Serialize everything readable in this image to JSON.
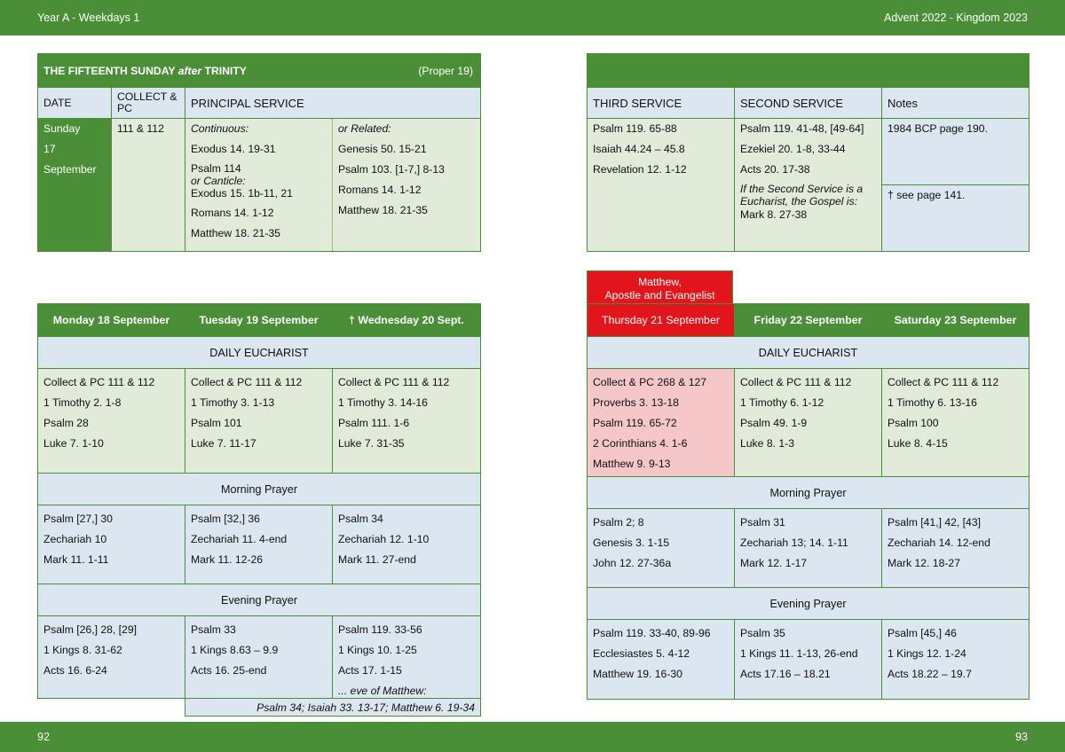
{
  "header": {
    "left": "Year A - Weekdays 1",
    "right": "Advent  2022 - Kingdom 2023"
  },
  "footer": {
    "left": "92",
    "right": "93"
  },
  "sunday": {
    "title_pre": "THE FIFTEENTH SUNDAY ",
    "title_after": "after",
    "title_post": " TRINITY",
    "proper": "(Proper 19)",
    "col_date": "DATE",
    "col_collect": "COLLECT & PC",
    "col_principal": "PRINCIPAL SERVICE",
    "col_third": "THIRD SERVICE",
    "col_second": "SECOND SERVICE",
    "col_notes": "Notes",
    "date_day": "Sunday",
    "date_num": "17",
    "date_month": "September",
    "collect": "111 & 112",
    "continuous_label": "Continuous:",
    "cont_1": "Exodus 14. 19-31",
    "cont_2": "Psalm 114",
    "cont_canticle": "or Canticle:",
    "cont_3": "Exodus 15. 1b-11, 21",
    "cont_4": "Romans 14. 1-12",
    "cont_5": "Matthew 18. 21-35",
    "related_label": "or Related:",
    "rel_1": "Genesis 50. 15-21",
    "rel_2": "Psalm 103. [1-7,] 8-13",
    "rel_3": "Romans 14. 1-12",
    "rel_4": "Matthew 18. 21-35",
    "third_1": "Psalm 119. 65-88",
    "third_2": "Isaiah 44.24 – 45.8",
    "third_3": "Revelation 12. 1-12",
    "second_1": "Psalm 119. 41-48, [49-64]",
    "second_2": "Ezekiel 20. 1-8, 33-44",
    "second_3": "Acts 20. 17-38",
    "second_note": "If the Second Service is a Eucharist, the Gospel is:",
    "second_4": "Mark 8. 27-38",
    "notes_1": "1984 BCP page 190.",
    "notes_2": "†  see page 141."
  },
  "week_left": {
    "days": [
      "Monday 18 September",
      "Tuesday 19 September",
      "†  Wednesday 20 Sept."
    ],
    "daily_label": "DAILY EUCHARIST",
    "daily": [
      [
        "Collect & PC 111 & 112",
        "1 Timothy 2. 1-8",
        "Psalm 28",
        "Luke 7. 1-10"
      ],
      [
        "Collect & PC 111 & 112",
        "1 Timothy 3. 1-13",
        "Psalm 101",
        "Luke 7. 11-17"
      ],
      [
        "Collect & PC 111 & 112",
        "1 Timothy 3. 14-16",
        "Psalm 111. 1-6",
        "Luke 7. 31-35"
      ]
    ],
    "morning_label": "Morning Prayer",
    "morning": [
      [
        "Psalm [27,] 30",
        "Zechariah 10",
        "Mark 11. 1-11"
      ],
      [
        "Psalm [32,] 36",
        "Zechariah 11. 4-end",
        "Mark 11. 12-26"
      ],
      [
        "Psalm 34",
        "Zechariah 12. 1-10",
        "Mark 11. 27-end"
      ]
    ],
    "evening_label": "Evening Prayer",
    "evening": [
      [
        "Psalm [26,] 28, [29]",
        "1 Kings 8. 31-62",
        "Acts 16. 6-24"
      ],
      [
        "Psalm 33",
        "1 Kings 8.63 – 9.9",
        "Acts 16. 25-end"
      ],
      [
        "Psalm 119. 33-56",
        "1 Kings 10. 1-25",
        "Acts 17. 1-15"
      ]
    ],
    "eve_label": "... eve of Matthew:",
    "eve_readings": "Psalm 34;  Isaiah 33. 13-17;  Matthew 6. 19-34"
  },
  "week_right": {
    "feast_1": "Matthew,",
    "feast_2": "Apostle and Evangelist",
    "days": [
      "Thursday 21 September",
      "Friday 22 September",
      "Saturday 23 September"
    ],
    "daily_label": "DAILY EUCHARIST",
    "daily": [
      [
        "Collect & PC 268 & 127",
        "Proverbs 3. 13-18",
        "Psalm 119. 65-72",
        "2 Corinthians 4. 1-6",
        "Matthew 9. 9-13"
      ],
      [
        "Collect & PC 111 & 112",
        "1 Timothy 6. 1-12",
        "Psalm 49. 1-9",
        "Luke 8. 1-3"
      ],
      [
        "Collect & PC 111 & 112",
        "1 Timothy 6. 13-16",
        "Psalm 100",
        "Luke 8. 4-15"
      ]
    ],
    "morning_label": "Morning Prayer",
    "morning": [
      [
        "Psalm 2; 8",
        "Genesis 3. 1-15",
        "John 12. 27-36a"
      ],
      [
        "Psalm 31",
        "Zechariah 13; 14. 1-11",
        "Mark 12. 1-17"
      ],
      [
        "Psalm [41,] 42, [43]",
        "Zechariah 14. 12-end",
        "Mark 12. 18-27"
      ]
    ],
    "evening_label": "Evening Prayer",
    "evening": [
      [
        "Psalm 119. 33-40, 89-96",
        "Ecclesiastes 5. 4-12",
        "Matthew 19. 16-30"
      ],
      [
        "Psalm 35",
        "1 Kings 11. 1-13, 26-end",
        "Acts 17.16 – 18.21"
      ],
      [
        "Psalm [45,] 46",
        "1 Kings 12. 1-24",
        "Acts 18.22 – 19.7"
      ]
    ]
  }
}
